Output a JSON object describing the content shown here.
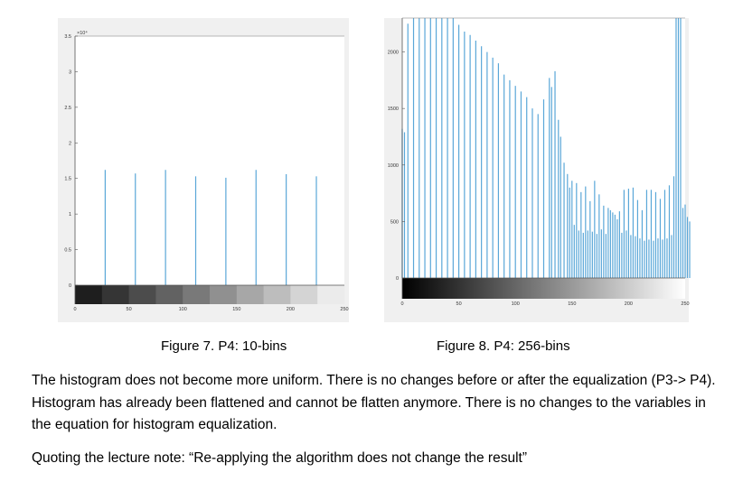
{
  "figures": [
    {
      "caption": "Figure 7. P4: 10-bins",
      "chart_data": {
        "type": "bar",
        "title": "",
        "exponent_label": "×10⁴",
        "xlim": [
          0,
          250
        ],
        "ylim": [
          0,
          3.5
        ],
        "x_ticks": [
          "0",
          "50",
          "100",
          "150",
          "200",
          "250"
        ],
        "y_ticks": [
          "0",
          "0.5",
          "1",
          "1.5",
          "2",
          "2.5",
          "3",
          "3.5"
        ],
        "x": [
          28,
          56,
          84,
          112,
          140,
          168,
          196,
          224
        ],
        "values": [
          1.62,
          1.57,
          1.62,
          1.53,
          1.51,
          1.62,
          1.56,
          1.53
        ],
        "colorbar": "grayscale 10 steps",
        "bar_color": "#5aa7d8"
      }
    },
    {
      "caption": "Figure 8. P4: 256-bins",
      "chart_data": {
        "type": "bar",
        "title": "",
        "xlim": [
          0,
          250
        ],
        "ylim": [
          0,
          2300
        ],
        "x_ticks": [
          "0",
          "50",
          "100",
          "150",
          "200",
          "250"
        ],
        "y_ticks": [
          "0",
          "500",
          "1000",
          "1500",
          "2000"
        ],
        "x": [
          0,
          2,
          5,
          10,
          15,
          20,
          25,
          30,
          35,
          40,
          45,
          50,
          55,
          60,
          65,
          70,
          75,
          80,
          85,
          90,
          95,
          100,
          105,
          110,
          115,
          120,
          125,
          130,
          132,
          135,
          138,
          140,
          143,
          146,
          148,
          150,
          152,
          154,
          156,
          158,
          160,
          162,
          164,
          166,
          168,
          170,
          172,
          174,
          176,
          178,
          180,
          182,
          184,
          186,
          188,
          190,
          192,
          194,
          196,
          198,
          200,
          202,
          204,
          206,
          208,
          210,
          212,
          214,
          216,
          218,
          220,
          222,
          224,
          226,
          228,
          230,
          232,
          234,
          236,
          238,
          240,
          242,
          244,
          246,
          248,
          250,
          252,
          254
        ],
        "values": [
          1320,
          1290,
          2250,
          2300,
          2300,
          2300,
          2300,
          2300,
          2300,
          2300,
          2300,
          2240,
          2180,
          2150,
          2100,
          2050,
          2000,
          1950,
          1900,
          1800,
          1750,
          1700,
          1650,
          1600,
          1500,
          1450,
          1580,
          1770,
          1690,
          1830,
          1400,
          1250,
          1020,
          920,
          800,
          860,
          470,
          840,
          420,
          760,
          400,
          810,
          420,
          680,
          410,
          860,
          390,
          740,
          430,
          640,
          390,
          620,
          600,
          580,
          560,
          520,
          590,
          400,
          780,
          420,
          790,
          380,
          800,
          370,
          690,
          350,
          600,
          330,
          780,
          340,
          780,
          330,
          760,
          350,
          700,
          340,
          780,
          350,
          820,
          380,
          900,
          2300,
          2300,
          2300,
          620,
          650,
          540,
          500
        ],
        "colorbar": "grayscale gradient",
        "bar_color": "#5aa7d8"
      }
    }
  ],
  "paragraphs": [
    "The histogram does not become more uniform. There is no changes before or after the equalization (P3-> P4).  Histogram has already been flattened and cannot be flatten anymore. There is no changes to the variables in the equation for histogram equalization.",
    "Quoting the lecture note: “Re-applying the algorithm does not change the result”"
  ]
}
